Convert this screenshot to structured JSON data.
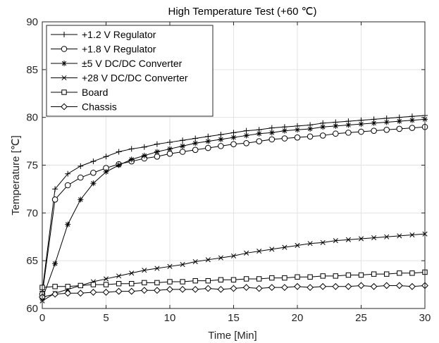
{
  "chart_data": {
    "type": "line",
    "title": "High Temperature Test (+60 ℃)",
    "xlabel": "Time [Min]",
    "ylabel": "Temperature [℃]",
    "xlim": [
      0,
      30
    ],
    "ylim": [
      60,
      90
    ],
    "xticks": [
      0,
      5,
      10,
      15,
      20,
      25,
      30
    ],
    "yticks": [
      60,
      65,
      70,
      75,
      80,
      85,
      90
    ],
    "grid": true,
    "legend_position": "top-left",
    "x": [
      0,
      1,
      2,
      3,
      4,
      5,
      6,
      7,
      8,
      9,
      10,
      11,
      12,
      13,
      14,
      15,
      16,
      17,
      18,
      19,
      20,
      21,
      22,
      23,
      24,
      25,
      26,
      27,
      28,
      29,
      30
    ],
    "series": [
      {
        "name": "+1.2 V Regulator",
        "marker": "plus",
        "values": [
          61.8,
          72.5,
          74.1,
          74.9,
          75.4,
          75.9,
          76.4,
          76.7,
          76.9,
          77.2,
          77.4,
          77.6,
          77.8,
          78.0,
          78.2,
          78.4,
          78.6,
          78.7,
          78.9,
          79.0,
          79.1,
          79.2,
          79.4,
          79.5,
          79.6,
          79.7,
          79.8,
          79.9,
          80.0,
          80.1,
          80.2
        ]
      },
      {
        "name": "+1.8 V Regulator",
        "marker": "circle",
        "values": [
          61.5,
          71.4,
          72.9,
          73.7,
          74.2,
          74.7,
          75.1,
          75.4,
          75.7,
          75.9,
          76.2,
          76.4,
          76.6,
          76.8,
          77.0,
          77.2,
          77.3,
          77.5,
          77.7,
          77.8,
          77.9,
          78.0,
          78.1,
          78.3,
          78.4,
          78.5,
          78.6,
          78.7,
          78.8,
          78.9,
          79.0
        ]
      },
      {
        "name": "±5 V DC/DC Converter",
        "marker": "asterisk",
        "values": [
          61.0,
          64.7,
          68.8,
          71.4,
          73.1,
          74.3,
          75.0,
          75.6,
          76.0,
          76.4,
          76.7,
          77.0,
          77.3,
          77.5,
          77.7,
          77.9,
          78.1,
          78.3,
          78.4,
          78.6,
          78.7,
          78.8,
          79.0,
          79.1,
          79.2,
          79.3,
          79.4,
          79.5,
          79.6,
          79.7,
          79.8
        ]
      },
      {
        "name": "+28 V DC/DC Converter",
        "marker": "cross",
        "values": [
          60.8,
          61.6,
          62.0,
          62.4,
          62.8,
          63.1,
          63.4,
          63.7,
          64.0,
          64.2,
          64.4,
          64.6,
          64.9,
          65.1,
          65.3,
          65.5,
          65.8,
          66.0,
          66.2,
          66.4,
          66.6,
          66.8,
          66.9,
          67.1,
          67.2,
          67.3,
          67.4,
          67.5,
          67.6,
          67.7,
          67.8
        ]
      },
      {
        "name": "Board",
        "marker": "square",
        "values": [
          62.2,
          62.3,
          62.3,
          62.4,
          62.5,
          62.5,
          62.6,
          62.6,
          62.7,
          62.7,
          62.8,
          62.8,
          62.9,
          62.9,
          63.0,
          63.0,
          63.1,
          63.1,
          63.2,
          63.2,
          63.3,
          63.3,
          63.4,
          63.4,
          63.5,
          63.5,
          63.6,
          63.6,
          63.7,
          63.7,
          63.8
        ]
      },
      {
        "name": "Chassis",
        "marker": "diamond",
        "values": [
          61.2,
          61.5,
          61.6,
          61.6,
          61.7,
          61.7,
          61.8,
          61.8,
          61.9,
          61.9,
          62.0,
          62.0,
          62.0,
          62.1,
          62.0,
          62.1,
          62.2,
          62.1,
          62.2,
          62.2,
          62.3,
          62.2,
          62.3,
          62.3,
          62.3,
          62.4,
          62.3,
          62.4,
          62.4,
          62.3,
          62.4
        ]
      }
    ]
  }
}
